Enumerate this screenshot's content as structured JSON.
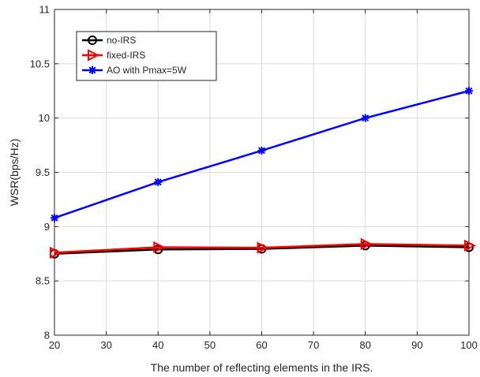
{
  "chart_data": {
    "type": "line",
    "title": "",
    "xlabel": "The number of reflecting elements in the IRS.",
    "ylabel": "WSR(bps/Hz)",
    "x": [
      20,
      40,
      60,
      80,
      100
    ],
    "xlim": [
      20,
      100
    ],
    "ylim": [
      8,
      11
    ],
    "xticks": [
      "20",
      "30",
      "40",
      "50",
      "60",
      "70",
      "80",
      "90",
      "100"
    ],
    "yticks": [
      "8",
      "8.5",
      "9",
      "9.5",
      "10",
      "10.5",
      "11"
    ],
    "grid": true,
    "legend_position": "top-left",
    "series": [
      {
        "name": "no-IRS",
        "values": [
          8.75,
          8.79,
          8.795,
          8.825,
          8.81
        ],
        "color": "#000000",
        "marker": "circle"
      },
      {
        "name": "fixed-IRS",
        "values": [
          8.76,
          8.81,
          8.805,
          8.84,
          8.825
        ],
        "color": "#ff0000",
        "marker": "triangle-right"
      },
      {
        "name": "AO with Pmax=5W",
        "values": [
          9.08,
          9.41,
          9.7,
          10.0,
          10.25
        ],
        "color": "#0000ff",
        "marker": "asterisk"
      }
    ]
  }
}
